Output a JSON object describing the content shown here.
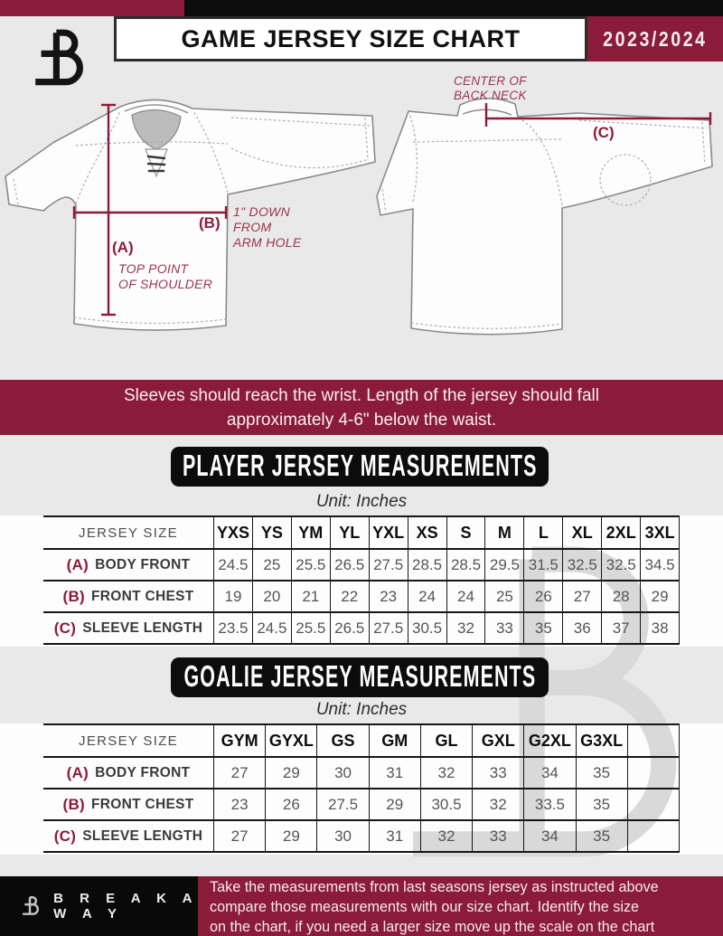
{
  "header": {
    "title": "GAME JERSEY SIZE CHART",
    "season": "2023/2024"
  },
  "icons": {
    "header_logo": "breakaway-b-logo",
    "footer_logo": "breakaway-b-logo",
    "watermark": "breakaway-b-watermark"
  },
  "diagram": {
    "a_tag": "(A)",
    "a_text": "TOP POINT\nOF SHOULDER",
    "b_tag": "(B)",
    "b_text": "1\" DOWN\nFROM\nARM HOLE",
    "c_tag": "(C)",
    "c_text": "CENTER OF\nBACK NECK"
  },
  "banner": {
    "lines": [
      "Sleeves should reach the wrist. Length of the jersey should fall",
      "approximately 4-6\" below the waist."
    ]
  },
  "player_section": {
    "title": "PLAYER JERSEY MEASUREMENTS",
    "unit": "Unit: Inches",
    "table": {
      "corner_label": "JERSEY SIZE",
      "sizes": [
        "YXS",
        "YS",
        "YM",
        "YL",
        "YXL",
        "XS",
        "S",
        "M",
        "L",
        "XL",
        "2XL",
        "3XL"
      ],
      "rows": [
        {
          "tag": "(A)",
          "label": "BODY FRONT",
          "values": [
            "24.5",
            "25",
            "25.5",
            "26.5",
            "27.5",
            "28.5",
            "28.5",
            "29.5",
            "31.5",
            "32.5",
            "32.5",
            "34.5"
          ]
        },
        {
          "tag": "(B)",
          "label": "FRONT CHEST",
          "values": [
            "19",
            "20",
            "21",
            "22",
            "23",
            "24",
            "24",
            "25",
            "26",
            "27",
            "28",
            "29"
          ]
        },
        {
          "tag": "(C)",
          "label": "SLEEVE LENGTH",
          "values": [
            "23.5",
            "24.5",
            "25.5",
            "26.5",
            "27.5",
            "30.5",
            "32",
            "33",
            "35",
            "36",
            "37",
            "38"
          ]
        }
      ]
    }
  },
  "goalie_section": {
    "title": "GOALIE JERSEY MEASUREMENTS",
    "unit": "Unit: Inches",
    "table": {
      "corner_label": "JERSEY SIZE",
      "sizes": [
        "GYM",
        "GYXL",
        "GS",
        "GM",
        "GL",
        "GXL",
        "G2XL",
        "G3XL",
        ""
      ],
      "rows": [
        {
          "tag": "(A)",
          "label": "BODY FRONT",
          "values": [
            "27",
            "29",
            "30",
            "31",
            "32",
            "33",
            "34",
            "35",
            ""
          ]
        },
        {
          "tag": "(B)",
          "label": "FRONT CHEST",
          "values": [
            "23",
            "26",
            "27.5",
            "29",
            "30.5",
            "32",
            "33.5",
            "35",
            ""
          ]
        },
        {
          "tag": "(C)",
          "label": "SLEEVE LENGTH",
          "values": [
            "27",
            "29",
            "30",
            "31",
            "32",
            "33",
            "34",
            "35",
            ""
          ]
        }
      ]
    }
  },
  "footer": {
    "brand": "B R E A K A W A Y",
    "note_lines": [
      "Take the measurements from last seasons jersey as instructed above",
      "compare those measurements  with our size chart. Identify the size",
      "on the chart, if you need a larger size move up the scale on the chart"
    ]
  },
  "colors": {
    "maroon": "#8a1b39",
    "black": "#0c0c0c",
    "page_bg": "#e9e9e9",
    "table_line": "#161616",
    "value_text": "#555555",
    "watermark_gray": "#d9d9d9"
  }
}
